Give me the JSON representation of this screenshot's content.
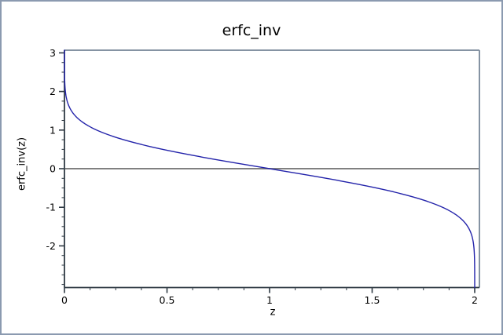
{
  "chart": {
    "title": "erfc_inv",
    "xlabel": "z",
    "ylabel": "erfc_inv(z)"
  },
  "chart_data": {
    "type": "line",
    "title": "erfc_inv",
    "xlabel": "z",
    "ylabel": "erfc_inv(z)",
    "function": "y = erfc_inv(z), i.e. z = erfc(y)",
    "xlim": [
      0,
      2.02
    ],
    "ylim": [
      -3.08,
      3.07
    ],
    "x_ticks": [
      {
        "v": 0,
        "label": "0"
      },
      {
        "v": 0.5,
        "label": "0.5"
      },
      {
        "v": 1,
        "label": "1"
      },
      {
        "v": 1.5,
        "label": "1.5"
      },
      {
        "v": 2,
        "label": "2"
      }
    ],
    "y_ticks": [
      {
        "v": 3,
        "label": "3"
      },
      {
        "v": 2,
        "label": "2"
      },
      {
        "v": 1,
        "label": "1"
      },
      {
        "v": 0,
        "label": "0"
      },
      {
        "v": -1,
        "label": "-1"
      },
      {
        "v": -2,
        "label": "-2"
      }
    ],
    "x_minor_step": 0.125,
    "y_minor_step": 0.25,
    "grid": false,
    "legend": "none",
    "zero_line": true,
    "series": [
      {
        "name": "erfc_inv",
        "color": "#2323aa",
        "points": [
          [
            2.21e-05,
            3.0
          ],
          [
            0.000407,
            2.5
          ],
          [
            0.004678,
            2.0
          ],
          [
            0.033895,
            1.5
          ],
          [
            0.157299,
            1.0
          ],
          [
            0.4795,
            0.5
          ],
          [
            1.0,
            0.0
          ],
          [
            1.5205,
            -0.5
          ],
          [
            1.842701,
            -1.0
          ],
          [
            1.966105,
            -1.5
          ],
          [
            1.995322,
            -2.0
          ],
          [
            1.999593,
            -2.5
          ],
          [
            1.999978,
            -3.0
          ]
        ]
      }
    ],
    "colors": {
      "curve": "#2323aa",
      "axis": "#2f3a44",
      "frame": "#8593a3",
      "zero_line": "#6e6e6e",
      "text": "#000000"
    }
  }
}
